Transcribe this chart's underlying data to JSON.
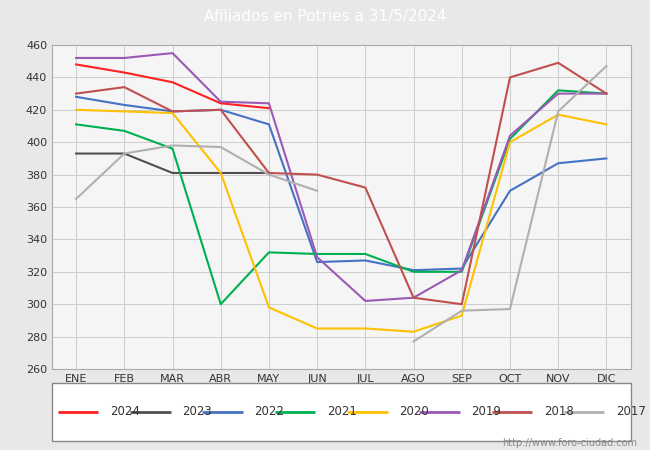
{
  "title": "Afiliados en Potries a 31/5/2024",
  "header_bg": "#5b9bd5",
  "months": [
    "ENE",
    "FEB",
    "MAR",
    "ABR",
    "MAY",
    "JUN",
    "JUL",
    "AGO",
    "SEP",
    "OCT",
    "NOV",
    "DIC"
  ],
  "ylim": [
    260,
    460
  ],
  "yticks": [
    260,
    280,
    300,
    320,
    340,
    360,
    380,
    400,
    420,
    440,
    460
  ],
  "series": {
    "2024": {
      "color": "#ff2020",
      "data": [
        448,
        443,
        437,
        424,
        421,
        null,
        null,
        null,
        null,
        null,
        null,
        null
      ]
    },
    "2023": {
      "color": "#505050",
      "data": [
        393,
        393,
        381,
        381,
        381,
        null,
        null,
        null,
        null,
        null,
        null,
        null
      ]
    },
    "2022": {
      "color": "#4472c4",
      "data": [
        428,
        423,
        419,
        420,
        411,
        326,
        327,
        321,
        322,
        370,
        387,
        390
      ]
    },
    "2021": {
      "color": "#00b050",
      "data": [
        411,
        407,
        396,
        300,
        332,
        331,
        331,
        320,
        320,
        402,
        432,
        430
      ]
    },
    "2020": {
      "color": "#ffc000",
      "data": [
        420,
        419,
        418,
        381,
        298,
        285,
        285,
        283,
        293,
        400,
        417,
        411
      ]
    },
    "2019": {
      "color": "#9b59b6",
      "data": [
        452,
        452,
        455,
        425,
        424,
        329,
        302,
        304,
        321,
        404,
        430,
        430
      ]
    },
    "2018": {
      "color": "#c0504d",
      "data": [
        430,
        434,
        419,
        420,
        381,
        380,
        372,
        304,
        300,
        440,
        449,
        430
      ]
    },
    "2017": {
      "color": "#b0b0b0",
      "data": [
        365,
        393,
        398,
        397,
        380,
        370,
        null,
        277,
        296,
        297,
        419,
        447
      ]
    }
  },
  "footer_url": "http://www.foro-ciudad.com",
  "grid_color": "#cccccc",
  "bg_color": "#e8e8e8",
  "plot_bg": "#f5f5f5"
}
